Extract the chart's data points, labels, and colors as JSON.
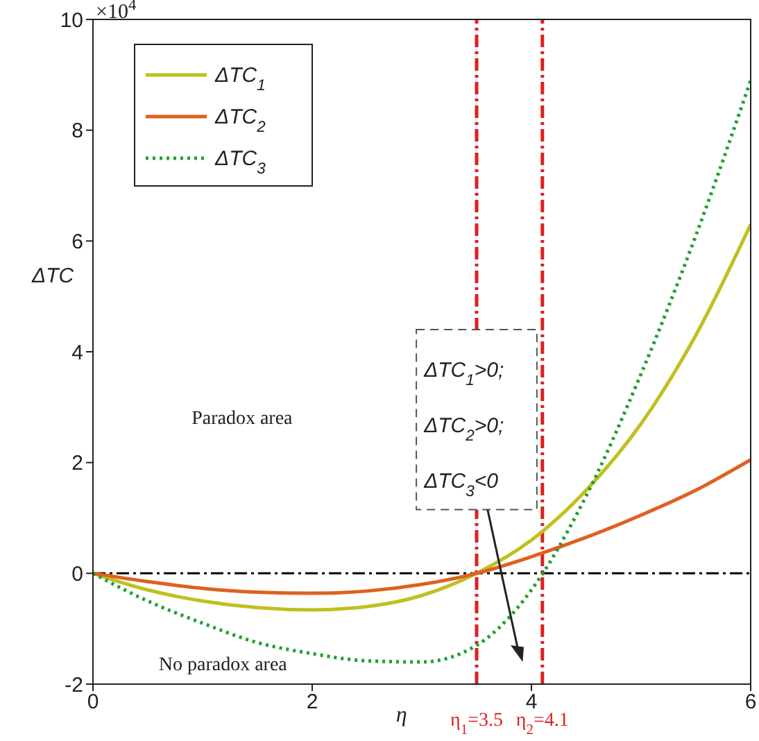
{
  "chart_data": {
    "type": "line",
    "x": [
      0,
      0.5,
      1,
      1.5,
      2,
      2.5,
      3,
      3.5,
      4,
      4.5,
      5,
      5.5,
      6
    ],
    "series": [
      {
        "name": "ΔTC$_{1}$",
        "color": "#c0c020",
        "line_style": "solid",
        "values": [
          0,
          -0.3,
          -0.5,
          -0.62,
          -0.66,
          -0.6,
          -0.4,
          0,
          0.6,
          1.5,
          2.7,
          4.3,
          6.3
        ]
      },
      {
        "name": "ΔTC$_{2}$",
        "color": "#e06020",
        "line_style": "solid",
        "values": [
          0,
          -0.15,
          -0.27,
          -0.34,
          -0.36,
          -0.32,
          -0.2,
          0,
          0.3,
          0.65,
          1.05,
          1.5,
          2.05
        ]
      },
      {
        "name": "ΔTC$_{3}$",
        "color": "#20a030",
        "line_style": "dotted",
        "values": [
          0,
          -0.5,
          -0.9,
          -1.25,
          -1.45,
          -1.58,
          -1.6,
          -1.3,
          -0.3,
          1.4,
          3.6,
          6.1,
          8.9
        ]
      }
    ],
    "xlabel": "η",
    "ylabel": "ΔTC",
    "xlim": [
      0,
      6
    ],
    "xticks": [
      0,
      2,
      4,
      6
    ],
    "ylim": [
      -2,
      10
    ],
    "yticks": [
      -2,
      0,
      2,
      4,
      6,
      8,
      10
    ],
    "ref_lines": [
      {
        "axis": "y",
        "value": 0,
        "label": null,
        "color": "#000000",
        "line_style": "dashed"
      },
      {
        "axis": "x",
        "value": 3.5,
        "label": "η$_{1}$=3.5",
        "color": "#e02020",
        "line_style": "dashed"
      },
      {
        "axis": "x",
        "value": 4.1,
        "label": "η$_{2}$=4.1",
        "color": "#e02020",
        "line_style": "dashed"
      }
    ],
    "annotations": [
      "×10$^{4}$",
      "Paradox area",
      "No paradox area",
      "ΔTC$_{1}$>0;",
      "ΔTC$_{2}$>0;",
      "ΔTC$_{3}$<0"
    ],
    "legend": "top left",
    "grid": false,
    "marker": "none"
  }
}
